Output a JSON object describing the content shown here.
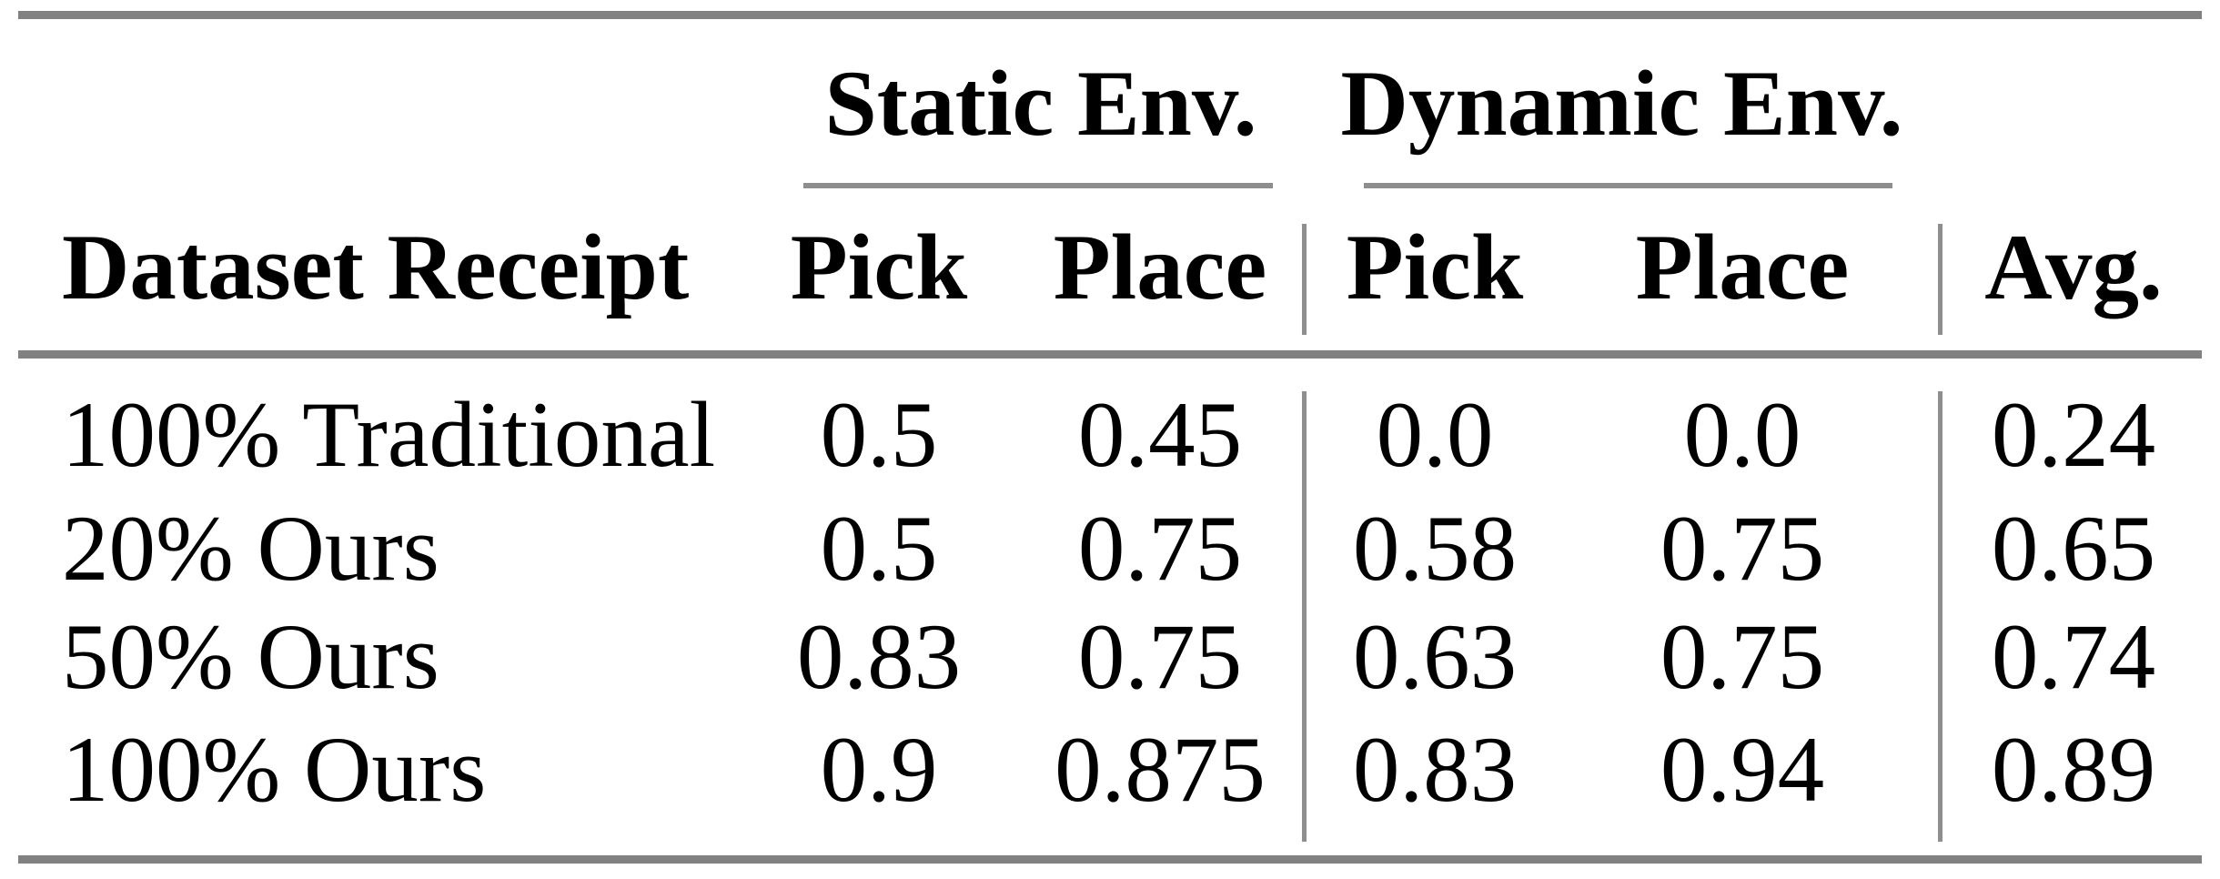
{
  "table": {
    "group_headers": [
      {
        "label": "Static Env."
      },
      {
        "label": "Dynamic Env."
      }
    ],
    "columns": [
      "Dataset Receipt",
      "Pick",
      "Place",
      "Pick",
      "Place",
      "Avg."
    ],
    "rows": [
      {
        "label": "100% Traditional",
        "cells": [
          "0.5",
          "0.45",
          "0.0",
          "0.0",
          "0.24"
        ]
      },
      {
        "label": "20% Ours",
        "cells": [
          "0.5",
          "0.75",
          "0.58",
          "0.75",
          "0.65"
        ]
      },
      {
        "label": "50% Ours",
        "cells": [
          "0.83",
          "0.75",
          "0.63",
          "0.75",
          "0.74"
        ]
      },
      {
        "label": "100% Ours",
        "cells": [
          "0.9",
          "0.875",
          "0.83",
          "0.94",
          "0.89"
        ]
      }
    ],
    "colors": {
      "text": "#000000",
      "background": "#ffffff",
      "thick_rule_gray": "#818181",
      "thin_rule_gray": "#8e8e8e"
    }
  },
  "chart_data": {
    "type": "table",
    "title": "",
    "categories": [
      "100% Traditional",
      "20% Ours",
      "50% Ours",
      "100% Ours"
    ],
    "series": [
      {
        "name": "Static Env. Pick",
        "values": [
          0.5,
          0.5,
          0.83,
          0.9
        ]
      },
      {
        "name": "Static Env. Place",
        "values": [
          0.45,
          0.75,
          0.75,
          0.875
        ]
      },
      {
        "name": "Dynamic Env. Pick",
        "values": [
          0.0,
          0.58,
          0.63,
          0.83
        ]
      },
      {
        "name": "Dynamic Env. Place",
        "values": [
          0.0,
          0.75,
          0.75,
          0.94
        ]
      },
      {
        "name": "Avg.",
        "values": [
          0.24,
          0.65,
          0.74,
          0.89
        ]
      }
    ]
  }
}
